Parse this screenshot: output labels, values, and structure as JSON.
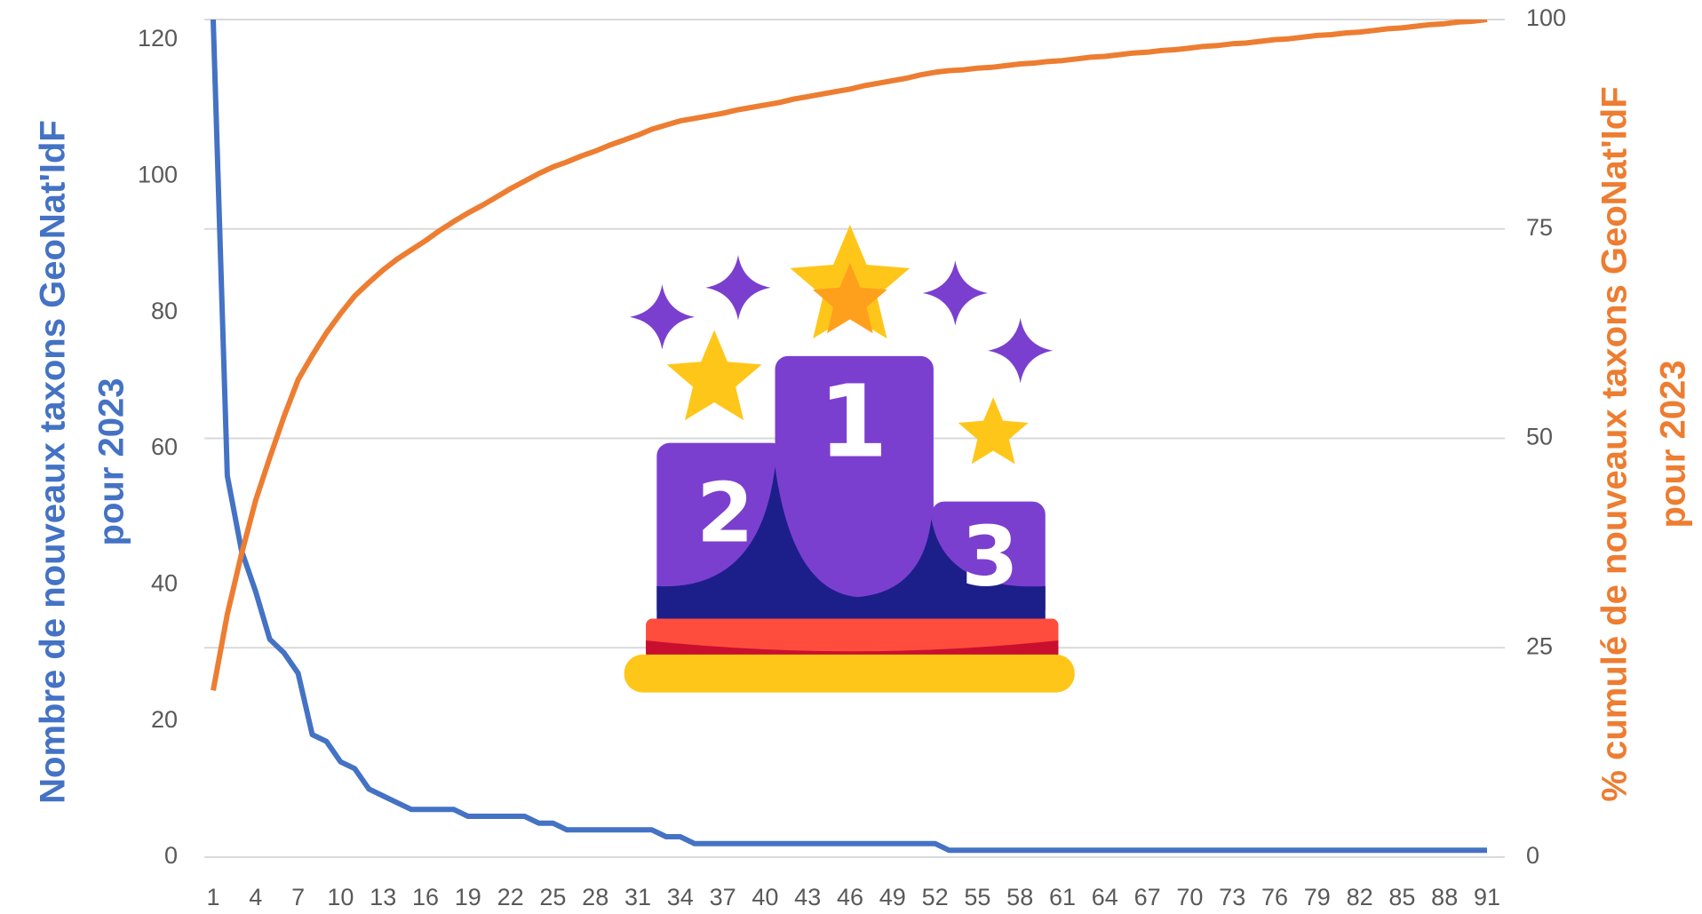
{
  "chart_data": {
    "type": "line",
    "ylabel": [
      "Nombre de nouveaux taxons GeoNat'IdF",
      "pour 2023"
    ],
    "y2label": [
      "% cumulé de nouveaux taxons GeoNat'IdF",
      "pour 2023"
    ],
    "x": [
      1,
      2,
      3,
      4,
      5,
      6,
      7,
      8,
      9,
      10,
      11,
      12,
      13,
      14,
      15,
      16,
      17,
      18,
      19,
      20,
      21,
      22,
      23,
      24,
      25,
      26,
      27,
      28,
      29,
      30,
      31,
      32,
      33,
      34,
      35,
      36,
      37,
      38,
      39,
      40,
      41,
      42,
      43,
      44,
      45,
      46,
      47,
      48,
      49,
      50,
      51,
      52,
      53,
      54,
      55,
      56,
      57,
      58,
      59,
      60,
      61,
      62,
      63,
      64,
      65,
      66,
      67,
      68,
      69,
      70,
      71,
      72,
      73,
      74,
      75,
      76,
      77,
      78,
      79,
      80,
      81,
      82,
      83,
      84,
      85,
      86,
      87,
      88,
      89,
      90,
      91
    ],
    "xlim": [
      1,
      91
    ],
    "xticks": [
      1,
      4,
      7,
      10,
      13,
      16,
      19,
      22,
      25,
      28,
      31,
      34,
      37,
      40,
      43,
      46,
      49,
      52,
      55,
      58,
      61,
      64,
      67,
      70,
      73,
      76,
      79,
      82,
      85,
      88,
      91
    ],
    "ylim": [
      0,
      123
    ],
    "yticks": [
      0,
      20,
      40,
      60,
      80,
      100,
      120
    ],
    "y2lim": [
      0,
      100
    ],
    "y2ticks": [
      0,
      25,
      50,
      75,
      100
    ],
    "grid": "y2",
    "series": [
      {
        "name": "Nombre de nouveaux taxons GeoNat'IdF pour 2023",
        "color": "#4472c4",
        "axis": "y",
        "values": [
          123,
          56,
          45,
          39,
          32,
          30,
          27,
          18,
          17,
          14,
          13,
          10,
          9,
          8,
          7,
          7,
          7,
          7,
          6,
          6,
          6,
          6,
          6,
          5,
          5,
          4,
          4,
          4,
          4,
          4,
          4,
          4,
          3,
          3,
          2,
          2,
          2,
          2,
          2,
          2,
          2,
          2,
          2,
          2,
          2,
          2,
          2,
          2,
          2,
          2,
          2,
          2,
          1,
          1,
          1,
          1,
          1,
          1,
          1,
          1,
          1,
          1,
          1,
          1,
          1,
          1,
          1,
          1,
          1,
          1,
          1,
          1,
          1,
          1,
          1,
          1,
          1,
          1,
          1,
          1,
          1,
          1,
          1,
          1,
          1,
          1,
          1,
          1,
          1,
          1,
          1
        ]
      },
      {
        "name": "% cumulé de nouveaux taxons GeoNat'IdF pour 2023",
        "color": "#ed7d31",
        "axis": "y2",
        "values": [
          19.9,
          29.0,
          36.2,
          42.6,
          47.7,
          52.6,
          57.0,
          59.9,
          62.6,
          64.9,
          67.0,
          68.6,
          70.1,
          71.4,
          72.5,
          73.6,
          74.8,
          75.9,
          76.9,
          77.8,
          78.8,
          79.8,
          80.7,
          81.6,
          82.4,
          83.0,
          83.7,
          84.3,
          85.0,
          85.6,
          86.2,
          86.9,
          87.4,
          87.9,
          88.2,
          88.5,
          88.8,
          89.2,
          89.5,
          89.8,
          90.1,
          90.5,
          90.8,
          91.1,
          91.4,
          91.7,
          92.1,
          92.4,
          92.7,
          93.0,
          93.4,
          93.7,
          93.9,
          94.0,
          94.2,
          94.3,
          94.5,
          94.7,
          94.8,
          95.0,
          95.1,
          95.3,
          95.5,
          95.6,
          95.8,
          96.0,
          96.1,
          96.3,
          96.4,
          96.6,
          96.8,
          96.9,
          97.1,
          97.2,
          97.4,
          97.6,
          97.7,
          97.9,
          98.1,
          98.2,
          98.4,
          98.5,
          98.7,
          98.9,
          99.0,
          99.2,
          99.4,
          99.5,
          99.7,
          99.8,
          100
        ]
      }
    ],
    "illustration": {
      "labels": [
        "1",
        "2",
        "3"
      ]
    }
  }
}
